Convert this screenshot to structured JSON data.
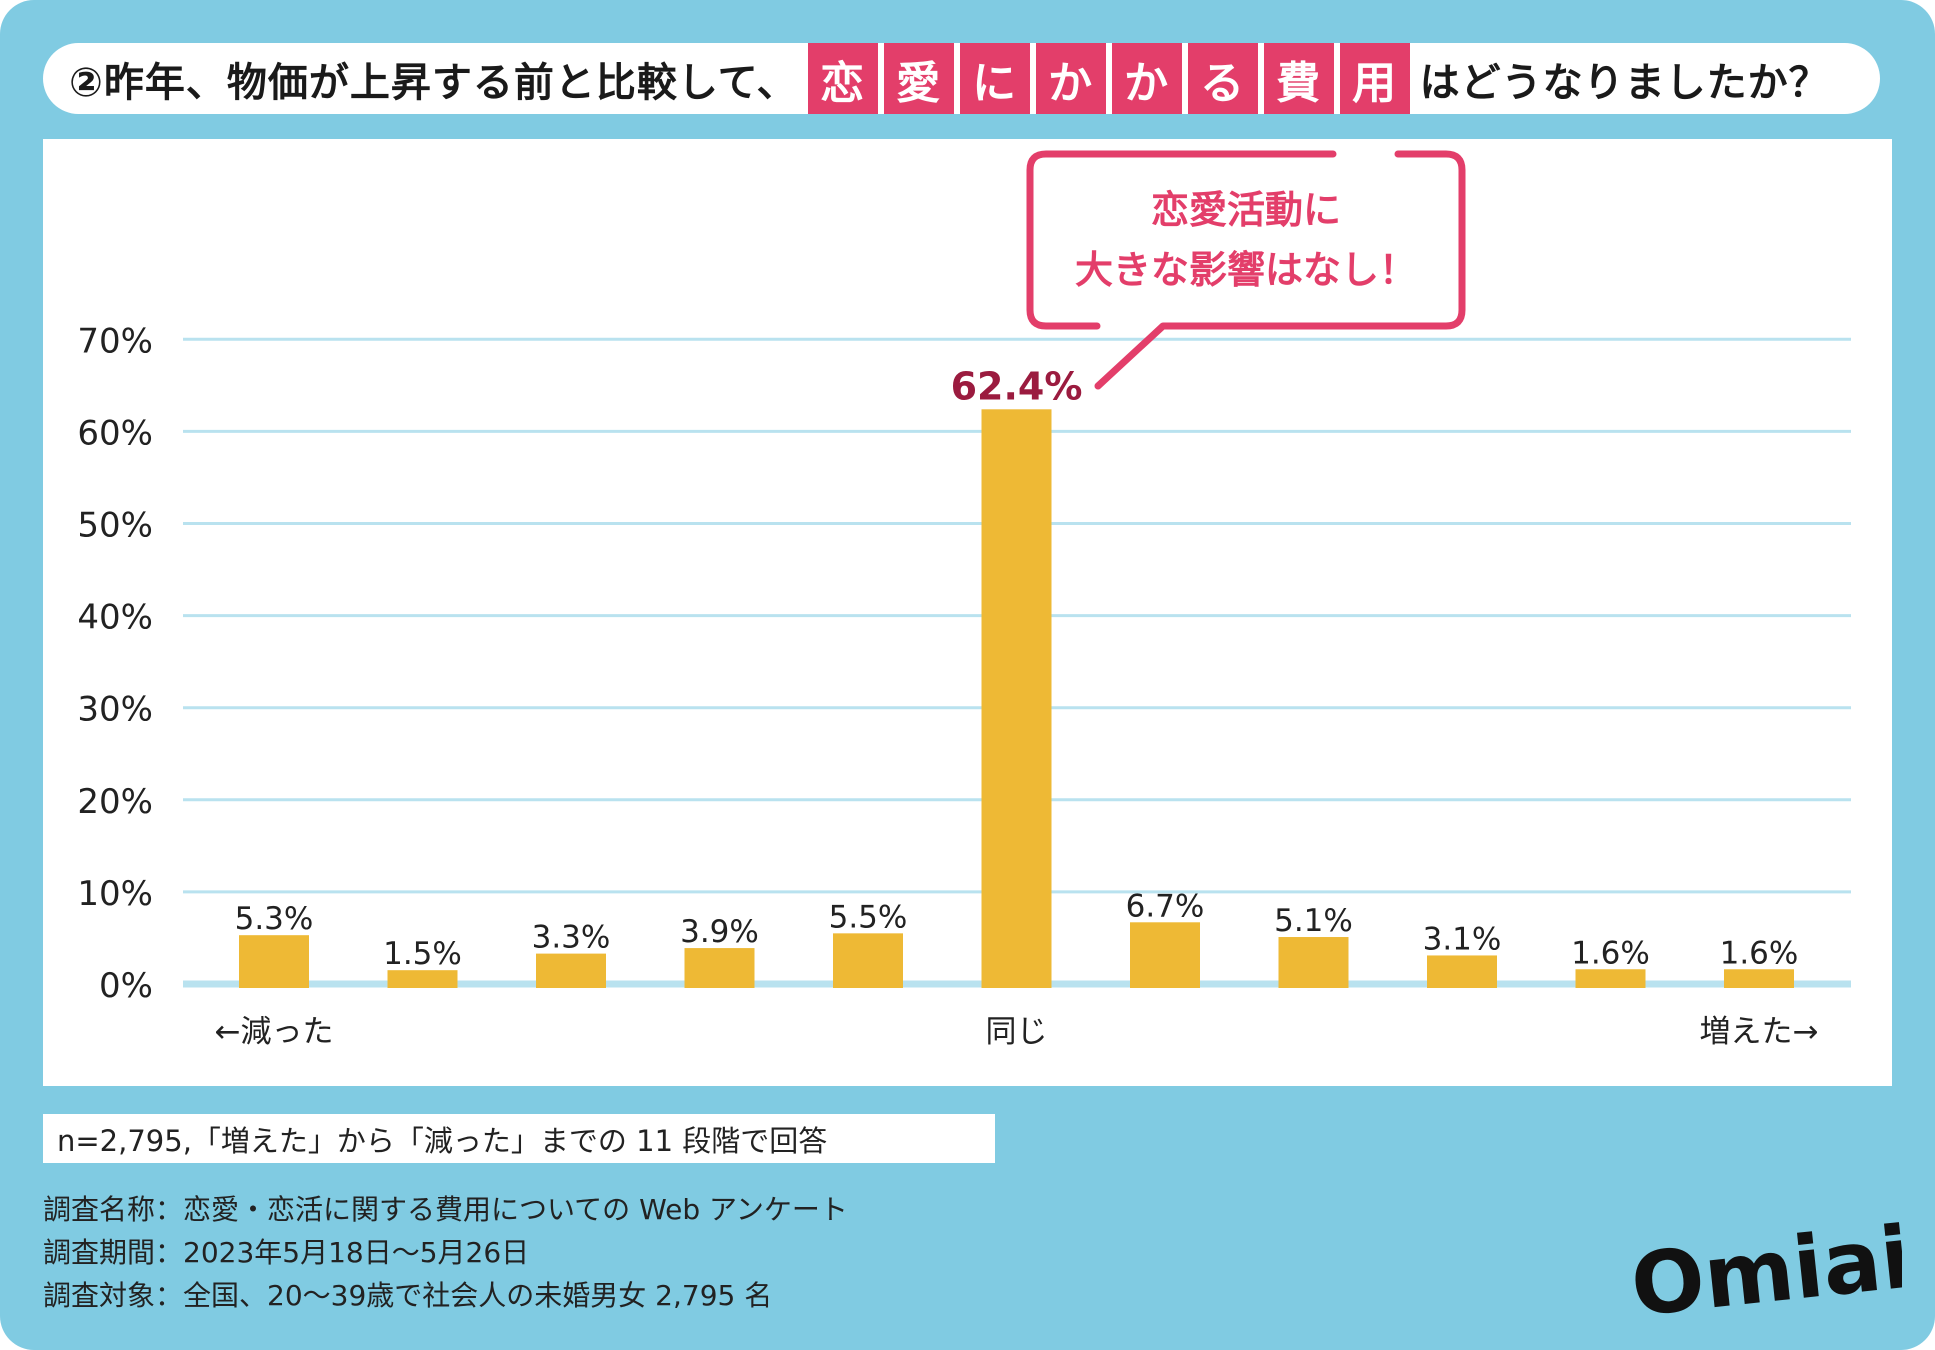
{
  "title": {
    "prefix": "②昨年、物価が上昇する前と比較して、",
    "highlight": [
      "恋",
      "愛",
      "に",
      "か",
      "か",
      "る",
      "費",
      "用"
    ],
    "suffix": "はどうなりましたか？"
  },
  "callout": {
    "line1": "恋愛活動に",
    "line2": "大きな影響はなし！"
  },
  "chart_data": {
    "type": "bar",
    "categories": [
      "←減った",
      "",
      "",
      "",
      "",
      "同じ",
      "",
      "",
      "",
      "",
      "増えた→"
    ],
    "values": [
      5.3,
      1.5,
      3.3,
      3.9,
      5.5,
      62.4,
      6.7,
      5.1,
      3.1,
      1.6,
      1.6
    ],
    "labels": [
      "5.3%",
      "1.5%",
      "3.3%",
      "3.9%",
      "5.5%",
      "62.4%",
      "6.7%",
      "5.1%",
      "3.1%",
      "1.6%",
      "1.6%"
    ],
    "yticks": [
      "0%",
      "10%",
      "20%",
      "30%",
      "40%",
      "50%",
      "60%",
      "70%"
    ],
    "ylim": [
      0,
      70
    ],
    "grid": true,
    "bar_color": "#EEB935",
    "highlight_label_color": "#9B1B3F",
    "grid_color": "#B9E2EF"
  },
  "footnote": "n=2,795,「増えた」から「減った」までの 11 段階で回答",
  "notes": [
    "調査名称：恋愛・恋活に関する費用についての Web アンケート",
    "調査期間：2023年5月18日〜5月26日",
    "調査対象：全国、20〜39歳で社会人の未婚男女 2,795 名"
  ],
  "logo": "Omiai",
  "colors": {
    "background": "#80CBE2",
    "accent": "#E33E6A"
  }
}
